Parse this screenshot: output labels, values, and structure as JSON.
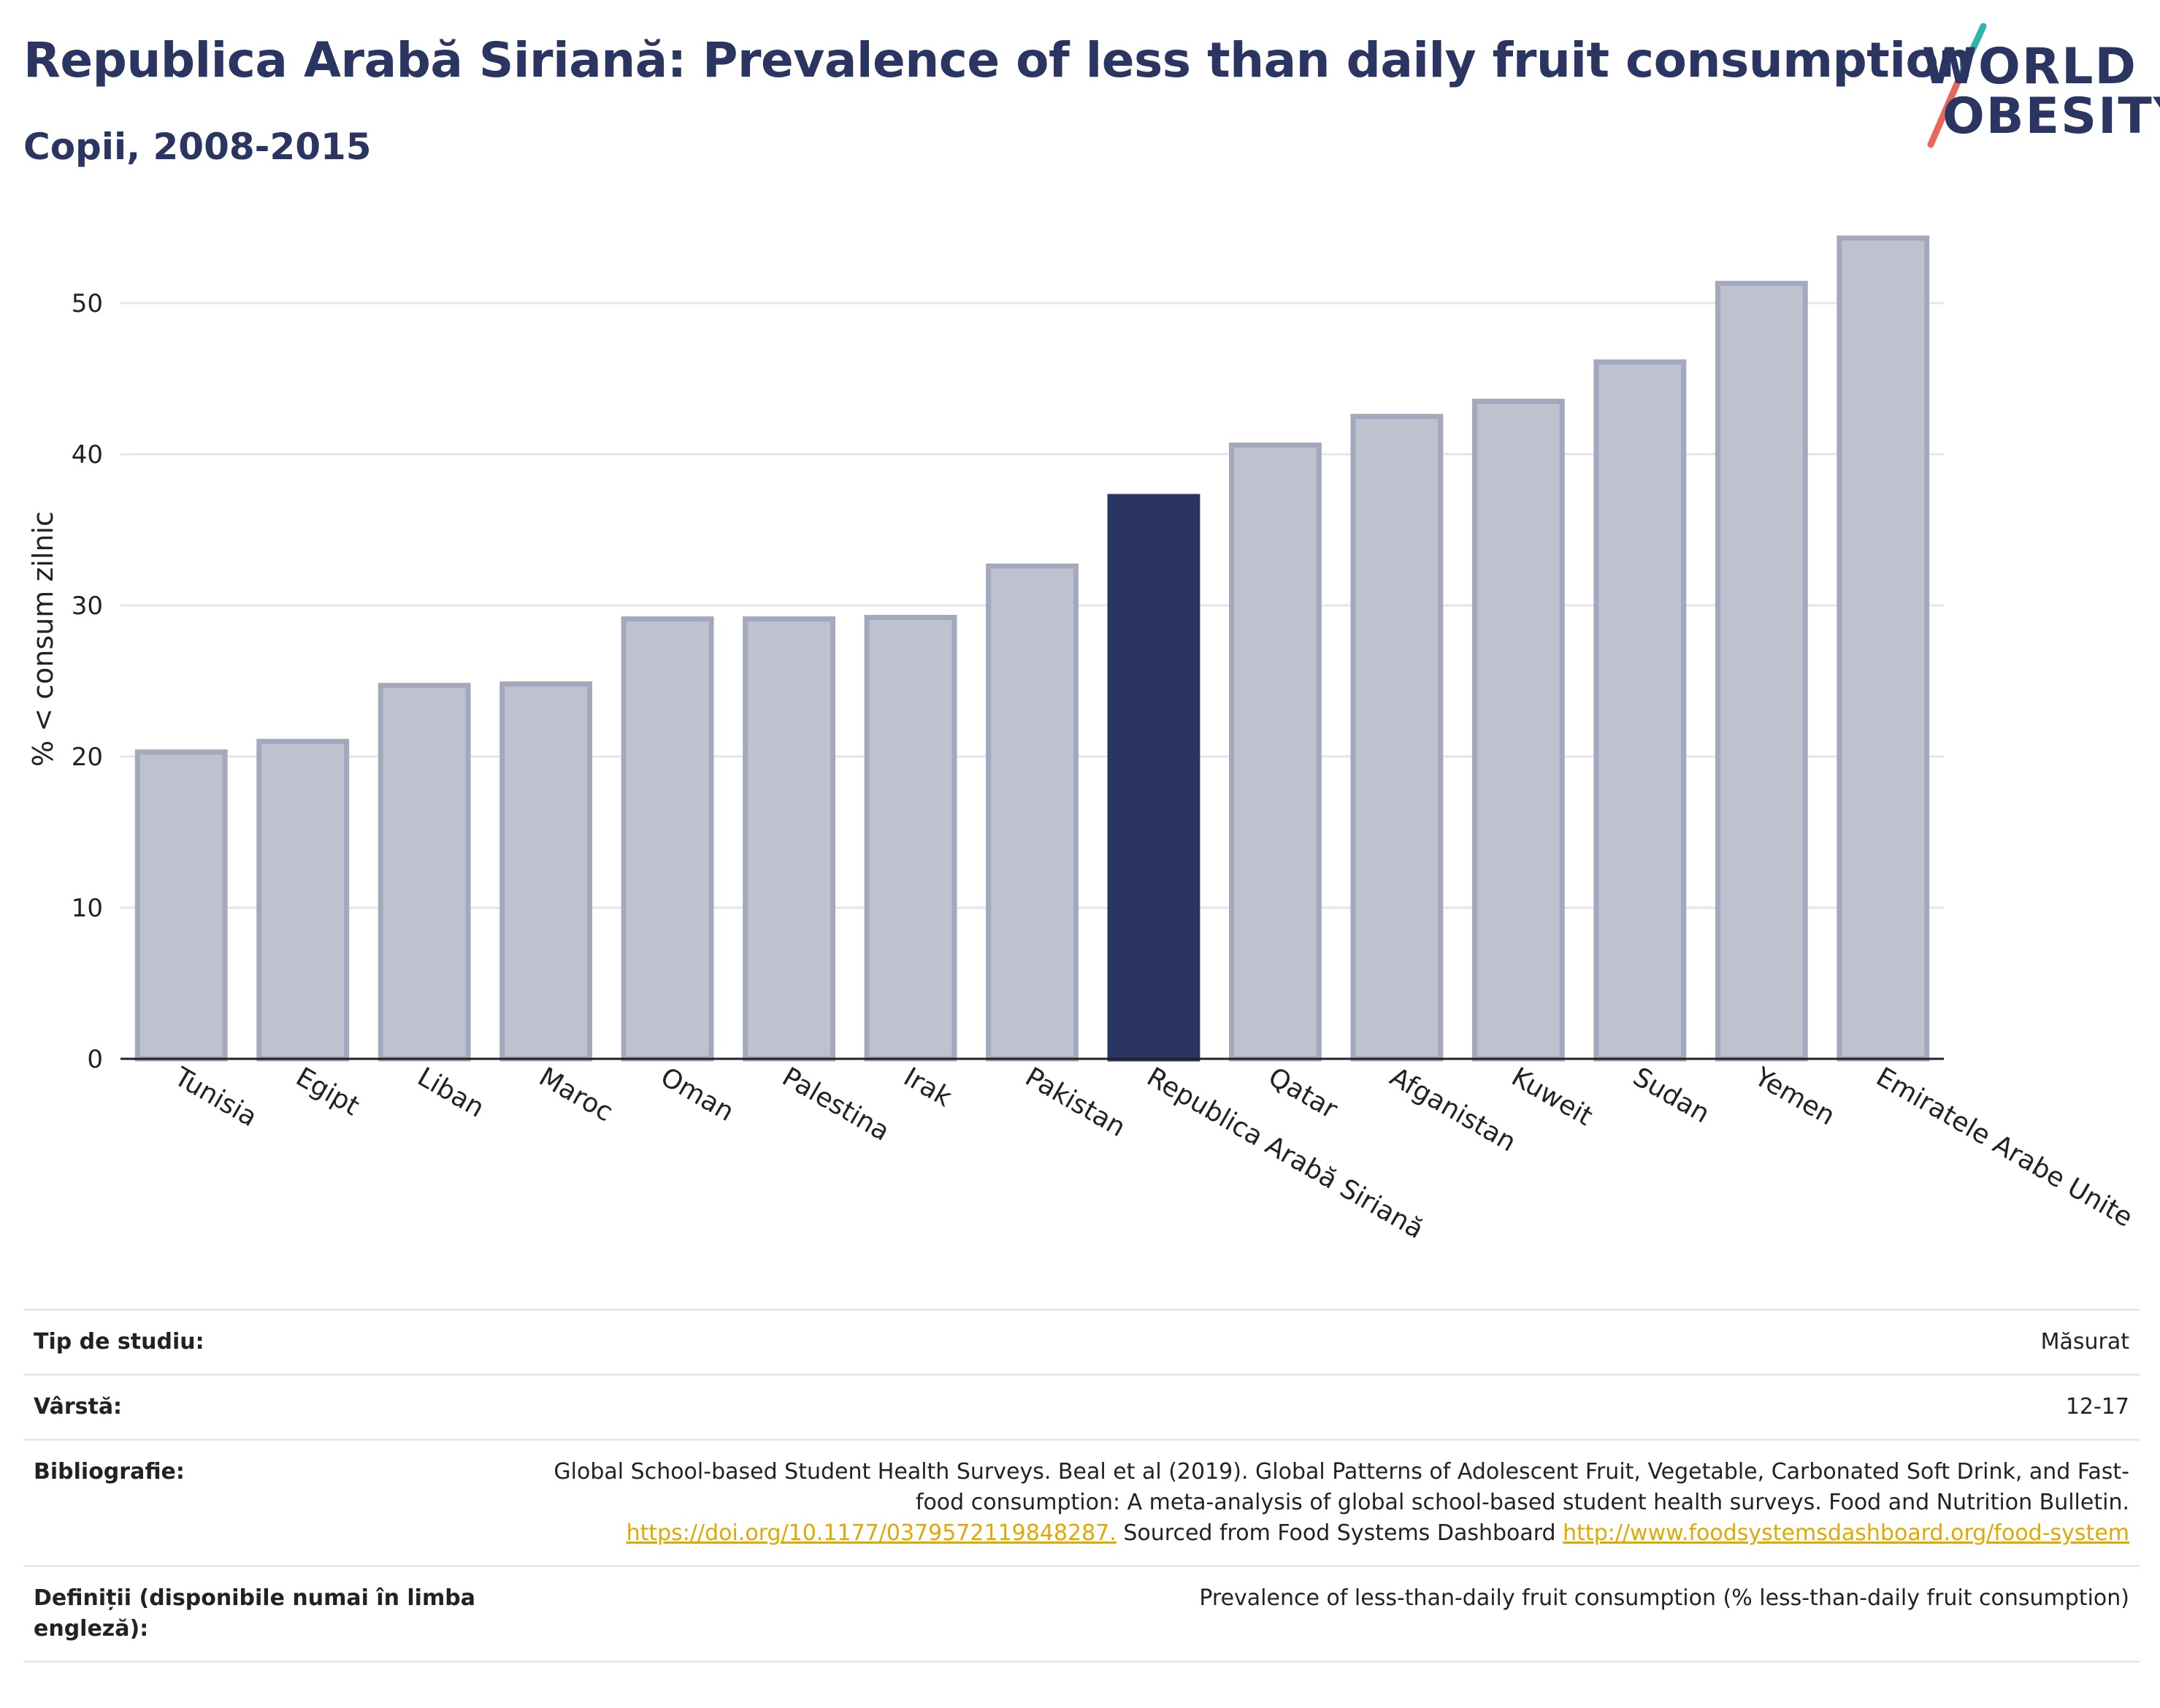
{
  "header": {
    "title": "Republica Arabă Siriană: Prevalence of less than daily fruit consumption",
    "subtitle": "Copii, 2008-2015",
    "logo_line1": "WORLD",
    "logo_line2": "OBESITY"
  },
  "colors": {
    "highlight": "#2b3561",
    "bar": "#bec2ce",
    "bar_border": "#a3a8bd",
    "grid": "#e4e6ec",
    "logo_slash_top": "#2bb7b0",
    "logo_slash_bottom": "#e8675a"
  },
  "chart_data": {
    "type": "bar",
    "title": "Republica Arabă Siriană: Prevalence of less than daily fruit consumption",
    "subtitle": "Copii, 2008-2015",
    "ylabel": "% < consum zilnic",
    "xlabel": "",
    "ylim": [
      0,
      55
    ],
    "yticks": [
      0,
      10,
      20,
      30,
      40,
      50
    ],
    "grid": true,
    "categories": [
      "Tunisia",
      "Egipt",
      "Liban",
      "Maroc",
      "Oman",
      "Palestina",
      "Irak",
      "Pakistan",
      "Republica Arabă Siriană",
      "Qatar",
      "Afganistan",
      "Kuweit",
      "Sudan",
      "Yemen",
      "Emiratele Arabe Unite"
    ],
    "values": [
      20.3,
      21.0,
      24.7,
      24.8,
      29.1,
      29.1,
      29.2,
      32.6,
      37.2,
      40.6,
      42.5,
      43.5,
      46.1,
      51.3,
      54.3
    ],
    "highlighted": "Republica Arabă Siriană"
  },
  "info": {
    "study_type_label": "Tip de studiu:",
    "study_type_value": "Măsurat",
    "age_label": "Vârstă:",
    "age_value": "12-17",
    "biblio_label": "Bibliografie:",
    "biblio_text1": "Global School-based Student Health Surveys. Beal et al (2019). Global Patterns of Adolescent Fruit, Vegetable, Carbonated Soft Drink, and Fast-food consumption: A meta-analysis of global school-based student health surveys. Food and Nutrition Bulletin.",
    "biblio_link1": "https://doi.org/10.1177/0379572119848287.",
    "biblio_text2": "Sourced from Food Systems Dashboard",
    "biblio_link2": "http://www.foodsystemsdashboard.org/food-system",
    "definitions_label": "Definiții (disponibile numai în limba engleză):",
    "definitions_value": "Prevalence of less-than-daily fruit consumption (% less-than-daily fruit consumption)"
  }
}
